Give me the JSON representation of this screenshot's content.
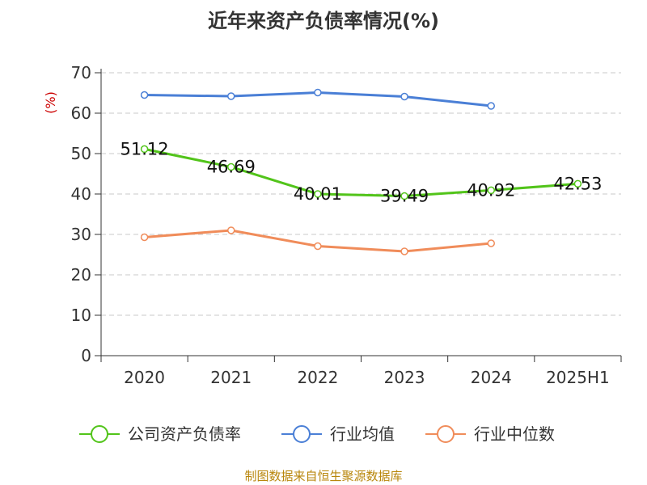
{
  "chart_data": {
    "type": "line",
    "title": "近年来资产负债率情况(%)",
    "ylabel": "(%)",
    "xlabel": "",
    "categories": [
      "2020",
      "2021",
      "2022",
      "2023",
      "2024",
      "2025H1"
    ],
    "ylim": [
      0,
      70
    ],
    "yticks": [
      0,
      10,
      20,
      30,
      40,
      50,
      60,
      70
    ],
    "grid": true,
    "legend_position": "bottom",
    "series": [
      {
        "name": "公司资产负债率",
        "color": "#52c41a",
        "values": [
          51.12,
          46.69,
          40.01,
          39.49,
          40.92,
          42.53
        ],
        "labels": [
          "51.12",
          "46.69",
          "40.01",
          "39.49",
          "40.92",
          "42.53"
        ]
      },
      {
        "name": "行业均值",
        "color": "#4a7fd6",
        "values": [
          64.5,
          64.2,
          65.1,
          64.1,
          61.8,
          null
        ]
      },
      {
        "name": "行业中位数",
        "color": "#f08c5a",
        "values": [
          29.3,
          31.0,
          27.1,
          25.8,
          27.8,
          null
        ]
      }
    ]
  },
  "footer": {
    "source": "制图数据来自恒生聚源数据库"
  }
}
